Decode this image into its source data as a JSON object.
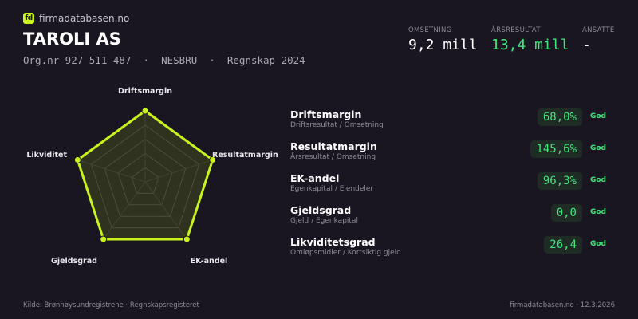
{
  "brand": {
    "logo_text": "fd",
    "name": "firmadatabasen.no",
    "accent": "#c8f31d"
  },
  "company": {
    "name": "TAROLI AS",
    "subtitle": "Org.nr 927 511 487  ·  NESBRU  ·  Regnskap 2024"
  },
  "kpis": [
    {
      "label": "OMSETNING",
      "value": "9,2 mill",
      "color": "#ffffff"
    },
    {
      "label": "ÅRSRESULTAT",
      "value": "13,4 mill",
      "color": "#3ee57a"
    },
    {
      "label": "ANSATTE",
      "value": "-",
      "color": "#ffffff"
    }
  ],
  "chart_data": {
    "type": "radar",
    "axes": [
      "Driftsmargin",
      "Resultatmargin",
      "EK-andel",
      "Gjeldsgrad",
      "Likviditet"
    ],
    "scores": [
      1.0,
      1.0,
      1.0,
      1.0,
      1.0
    ],
    "range": [
      0,
      1
    ],
    "grid_levels": 5,
    "color": "#c8f31d"
  },
  "ratios": [
    {
      "name": "Driftsmargin",
      "formula": "Driftsresultat / Omsetning",
      "value": "68,0%",
      "rating": "God"
    },
    {
      "name": "Resultatmargin",
      "formula": "Årsresultat / Omsetning",
      "value": "145,6%",
      "rating": "God"
    },
    {
      "name": "EK-andel",
      "formula": "Egenkapital / Eiendeler",
      "value": "96,3%",
      "rating": "God"
    },
    {
      "name": "Gjeldsgrad",
      "formula": "Gjeld / Egenkapital",
      "value": "0,0",
      "rating": "God"
    },
    {
      "name": "Likviditetsgrad",
      "formula": "Omløpsmidler / Kortsiktig gjeld",
      "value": "26,4",
      "rating": "God"
    }
  ],
  "footer": {
    "source": "Kilde: Brønnøysundregistrene · Regnskapsregisteret",
    "site_date": "firmadatabasen.no · 12.3.2026"
  }
}
